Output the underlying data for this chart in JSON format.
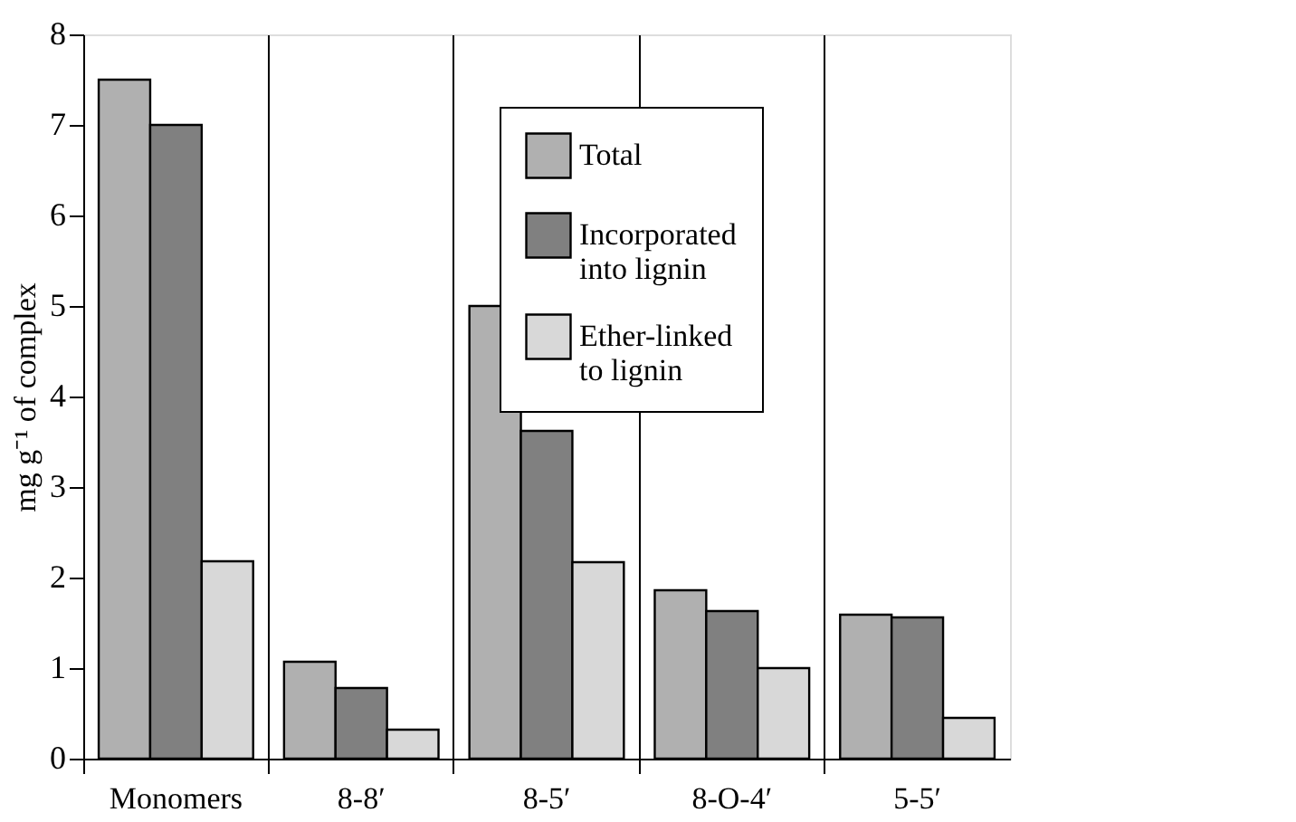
{
  "chart_data": {
    "type": "bar",
    "ylabel": "mg g⁻¹ of complex",
    "categories": [
      "Monomers",
      "8-8′",
      "8-5′",
      "8-O-4′",
      "5-5′"
    ],
    "series": [
      {
        "name": "Total",
        "color": "#b0b0b0",
        "values": [
          7.5,
          1.07,
          5.0,
          1.86,
          1.59
        ]
      },
      {
        "name": "Incorporated into lignin",
        "color": "#808080",
        "values": [
          7.0,
          0.78,
          3.62,
          1.63,
          1.56
        ]
      },
      {
        "name": "Ether-linked to lignin",
        "color": "#d8d8d8",
        "values": [
          2.18,
          0.32,
          2.17,
          1.0,
          0.45
        ]
      }
    ],
    "ylim": [
      0,
      8
    ],
    "yticks": [
      0,
      1,
      2,
      3,
      4,
      5,
      6,
      7,
      8
    ],
    "grid": "x",
    "legend": "top right"
  }
}
